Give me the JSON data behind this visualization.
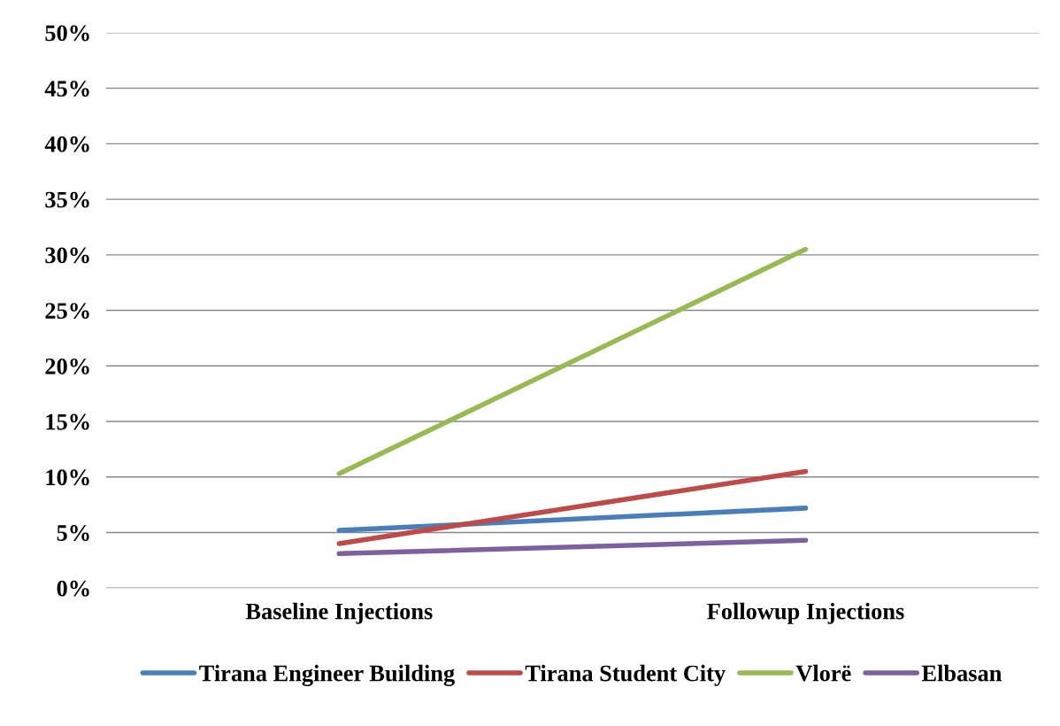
{
  "chart_data": {
    "type": "line",
    "categories": [
      "Baseline Injections",
      "Followup Injections"
    ],
    "series": [
      {
        "name": "Tirana Engineer Building",
        "color": "#4a7ebb",
        "values": [
          5.2,
          7.2
        ]
      },
      {
        "name": "Tirana Student City",
        "color": "#be4b48",
        "values": [
          4.0,
          10.5
        ]
      },
      {
        "name": "Vlorë",
        "color": "#98b954",
        "values": [
          10.3,
          30.5
        ]
      },
      {
        "name": "Elbasan",
        "color": "#7d60a0",
        "values": [
          3.1,
          4.3
        ]
      }
    ],
    "ylim": [
      0,
      50
    ],
    "yticks": [
      {
        "value": 0,
        "label": "0%"
      },
      {
        "value": 5,
        "label": "5%"
      },
      {
        "value": 10,
        "label": "10%"
      },
      {
        "value": 15,
        "label": "15%"
      },
      {
        "value": 20,
        "label": "20%"
      },
      {
        "value": 25,
        "label": "25%"
      },
      {
        "value": 30,
        "label": "30%"
      },
      {
        "value": 35,
        "label": "35%"
      },
      {
        "value": 40,
        "label": "40%"
      },
      {
        "value": 45,
        "label": "45%"
      },
      {
        "value": 50,
        "label": "50%"
      }
    ],
    "grid": "y",
    "legend": "bottom",
    "marker": "none",
    "line_style": "solid"
  }
}
